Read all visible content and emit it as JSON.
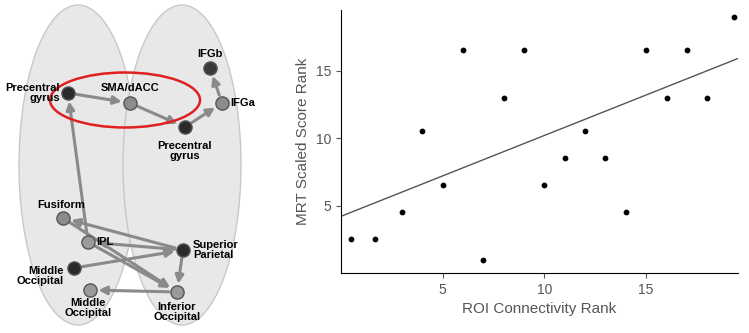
{
  "diagram": {
    "nodes": [
      {
        "label": "Precentral\ngyrus"
      },
      {
        "label": "SMA/dACC"
      },
      {
        "label": "Precentral\ngyrus"
      },
      {
        "label": "IFGb"
      },
      {
        "label": "IFGa"
      },
      {
        "label": "Fusiform"
      },
      {
        "label": "IPL"
      },
      {
        "label": "Superior\nParietal"
      },
      {
        "label": "Middle\nOccipital"
      },
      {
        "label": "Middle\nOccipital"
      },
      {
        "label": "Inferior\nOccipital"
      }
    ]
  },
  "chart_data": {
    "type": "scatter",
    "x_label": "ROI Connectivity Rank",
    "y_label": "MRT Scaled Score Rank",
    "x": [
      0.5,
      1.7,
      3,
      4,
      5,
      6,
      7,
      8,
      9,
      10,
      11,
      12,
      13,
      14,
      15,
      16,
      17,
      18,
      19.3
    ],
    "values": [
      2.5,
      2.5,
      4.5,
      10.5,
      6.5,
      16.5,
      1,
      13,
      16.5,
      6.5,
      8.5,
      10.5,
      8.5,
      4.5,
      16.5,
      13,
      16.5,
      13,
      19
    ],
    "color": "#000000",
    "fit": {
      "intercept": 4.2,
      "slope": 0.6
    },
    "xlim": [
      0,
      19.5
    ],
    "ylim": [
      0,
      19.5
    ],
    "xticks": [
      5,
      10,
      15
    ],
    "yticks": [
      5,
      10,
      15
    ],
    "grid": false
  }
}
